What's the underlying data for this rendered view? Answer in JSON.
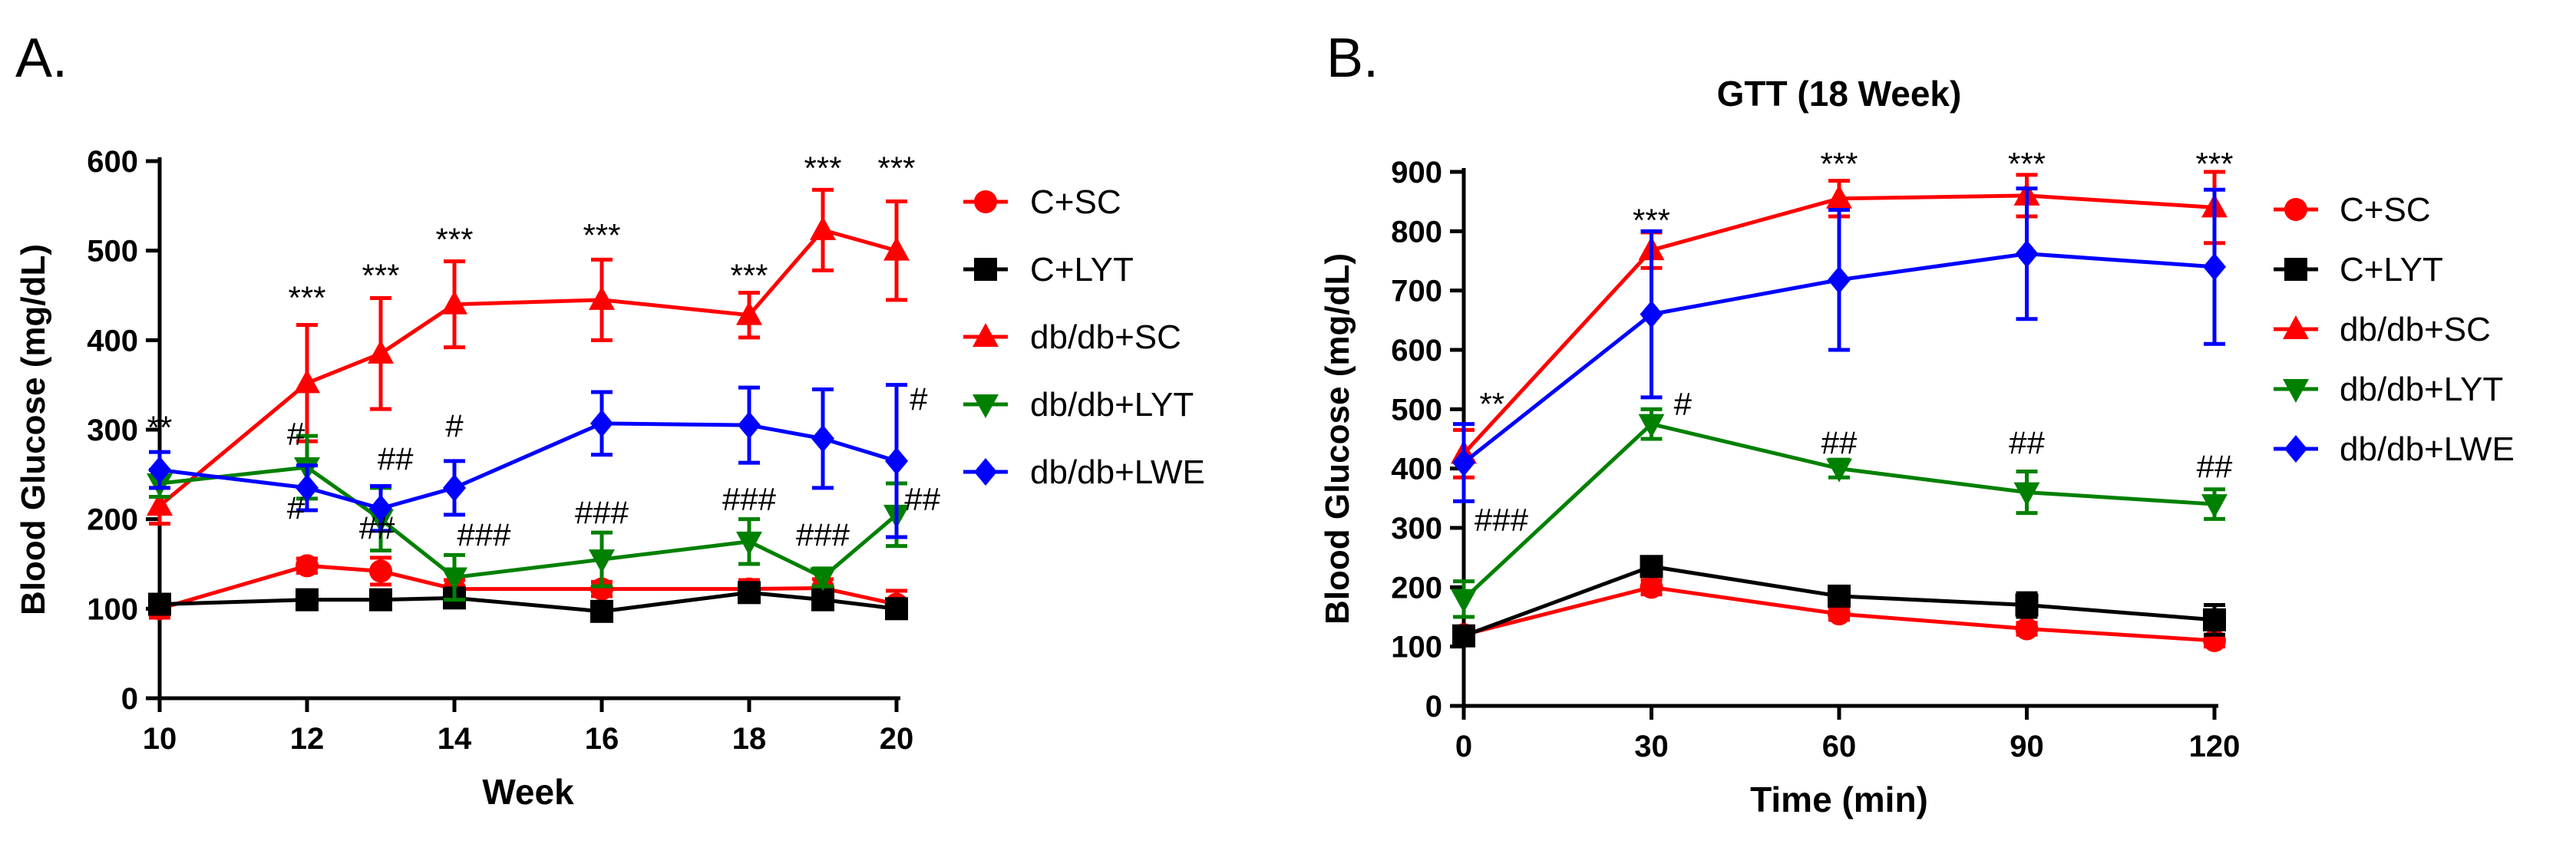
{
  "figure": {
    "panel_labels": [
      "A.",
      "B."
    ]
  },
  "chart_data": [
    {
      "type": "line",
      "panel": "A.",
      "title": "",
      "xlabel": "Week",
      "ylabel": "Blood Glucose (mg/dL)",
      "xlim": [
        10,
        20
      ],
      "ylim": [
        0,
        600
      ],
      "xticks": [
        10,
        12,
        14,
        16,
        18,
        20
      ],
      "yticks": [
        0,
        100,
        200,
        300,
        400,
        500,
        600
      ],
      "legend_position": "right",
      "series": [
        {
          "name": "C+SC",
          "color": "#ff0000",
          "marker": "circle",
          "x": [
            10,
            12,
            13,
            14,
            16,
            18,
            19,
            20
          ],
          "y": [
            100,
            148,
            142,
            122,
            122,
            122,
            123,
            105
          ],
          "err": [
            10,
            8,
            15,
            10,
            8,
            10,
            10,
            15
          ]
        },
        {
          "name": "C+LYT",
          "color": "#000000",
          "marker": "square",
          "x": [
            10,
            12,
            13,
            14,
            16,
            18,
            19,
            20
          ],
          "y": [
            105,
            110,
            110,
            112,
            97,
            118,
            110,
            100
          ],
          "err": [
            8,
            8,
            8,
            8,
            8,
            10,
            8,
            8
          ]
        },
        {
          "name": "db/db+SC",
          "color": "#ff0000",
          "marker": "triangle-up",
          "x": [
            10,
            12,
            13,
            14,
            16,
            18,
            19,
            20
          ],
          "y": [
            215,
            352,
            385,
            440,
            445,
            428,
            523,
            500
          ],
          "err": [
            20,
            65,
            62,
            48,
            45,
            25,
            45,
            55
          ]
        },
        {
          "name": "db/db+LYT",
          "color": "#008000",
          "marker": "triangle-down",
          "x": [
            10,
            12,
            13,
            14,
            16,
            18,
            19,
            20
          ],
          "y": [
            240,
            258,
            200,
            135,
            155,
            175,
            135,
            205
          ],
          "err": [
            15,
            35,
            35,
            25,
            30,
            25,
            10,
            35
          ]
        },
        {
          "name": "db/db+LWE",
          "color": "#0000ff",
          "marker": "diamond",
          "x": [
            10,
            12,
            13,
            14,
            16,
            18,
            19,
            20
          ],
          "y": [
            255,
            235,
            212,
            235,
            307,
            305,
            290,
            265
          ],
          "err": [
            20,
            25,
            25,
            30,
            35,
            42,
            55,
            85
          ]
        }
      ],
      "annotations": [
        {
          "text": "**",
          "x": 10,
          "y": 290,
          "color": "#000000"
        },
        {
          "text": "***",
          "x": 12,
          "y": 435,
          "color": "#000000"
        },
        {
          "text": "***",
          "x": 13,
          "y": 460,
          "color": "#000000"
        },
        {
          "text": "***",
          "x": 14,
          "y": 500,
          "color": "#000000"
        },
        {
          "text": "***",
          "x": 16,
          "y": 505,
          "color": "#000000"
        },
        {
          "text": "***",
          "x": 18,
          "y": 460,
          "color": "#000000"
        },
        {
          "text": "***",
          "x": 19,
          "y": 580,
          "color": "#000000"
        },
        {
          "text": "***",
          "x": 20,
          "y": 580,
          "color": "#000000"
        },
        {
          "text": "#",
          "x": 11.85,
          "y": 283,
          "color": "#000000"
        },
        {
          "text": "#",
          "x": 11.85,
          "y": 200,
          "color": "#000000"
        },
        {
          "text": "##",
          "x": 13.2,
          "y": 255,
          "color": "#000000"
        },
        {
          "text": "##",
          "x": 12.95,
          "y": 178,
          "color": "#000000"
        },
        {
          "text": "#",
          "x": 14,
          "y": 292,
          "color": "#000000"
        },
        {
          "text": "###",
          "x": 14.4,
          "y": 170,
          "color": "#000000"
        },
        {
          "text": "###",
          "x": 16,
          "y": 195,
          "color": "#000000"
        },
        {
          "text": "###",
          "x": 18,
          "y": 210,
          "color": "#000000"
        },
        {
          "text": "###",
          "x": 19,
          "y": 170,
          "color": "#000000"
        },
        {
          "text": "#",
          "x": 20.3,
          "y": 322,
          "color": "#000000"
        },
        {
          "text": "##",
          "x": 20.35,
          "y": 210,
          "color": "#000000"
        }
      ]
    },
    {
      "type": "line",
      "panel": "B.",
      "title": "GTT (18 Week)",
      "xlabel": "Time (min)",
      "ylabel": "Blood Glucose (mg/dL)",
      "xlim": [
        0,
        120
      ],
      "ylim": [
        0,
        900
      ],
      "xticks": [
        0,
        30,
        60,
        90,
        120
      ],
      "yticks": [
        0,
        100,
        200,
        300,
        400,
        500,
        600,
        700,
        800,
        900
      ],
      "legend_position": "right",
      "series": [
        {
          "name": "C+SC",
          "color": "#ff0000",
          "marker": "circle",
          "x": [
            0,
            30,
            60,
            90,
            120
          ],
          "y": [
            120,
            200,
            155,
            130,
            110
          ],
          "err": [
            10,
            12,
            10,
            10,
            10
          ]
        },
        {
          "name": "C+LYT",
          "color": "#000000",
          "marker": "square",
          "x": [
            0,
            30,
            60,
            90,
            120
          ],
          "y": [
            118,
            235,
            185,
            170,
            145
          ],
          "err": [
            12,
            15,
            15,
            20,
            25
          ]
        },
        {
          "name": "db/db+SC",
          "color": "#ff0000",
          "marker": "triangle-up",
          "x": [
            0,
            30,
            60,
            90,
            120
          ],
          "y": [
            425,
            768,
            855,
            860,
            840
          ],
          "err": [
            40,
            30,
            30,
            35,
            60
          ]
        },
        {
          "name": "db/db+LYT",
          "color": "#008000",
          "marker": "triangle-down",
          "x": [
            0,
            30,
            60,
            90,
            120
          ],
          "y": [
            180,
            475,
            400,
            360,
            340
          ],
          "err": [
            30,
            25,
            15,
            35,
            25
          ]
        },
        {
          "name": "db/db+LWE",
          "color": "#0000ff",
          "marker": "diamond",
          "x": [
            0,
            30,
            60,
            90,
            120
          ],
          "y": [
            410,
            660,
            718,
            762,
            740
          ],
          "err": [
            65,
            140,
            118,
            110,
            130
          ]
        }
      ],
      "annotations": [
        {
          "text": "**",
          "x": 4.5,
          "y": 490,
          "color": "#000000"
        },
        {
          "text": "***",
          "x": 30,
          "y": 800,
          "color": "#000000"
        },
        {
          "text": "***",
          "x": 60,
          "y": 895,
          "color": "#000000"
        },
        {
          "text": "***",
          "x": 90,
          "y": 895,
          "color": "#000000"
        },
        {
          "text": "***",
          "x": 120,
          "y": 895,
          "color": "#000000"
        },
        {
          "text": "#",
          "x": 35,
          "y": 490,
          "color": "#000000"
        },
        {
          "text": "##",
          "x": 60,
          "y": 425,
          "color": "#000000"
        },
        {
          "text": "##",
          "x": 90,
          "y": 425,
          "color": "#000000"
        },
        {
          "text": "##",
          "x": 120,
          "y": 385,
          "color": "#000000"
        },
        {
          "text": "###",
          "x": 6,
          "y": 295,
          "color": "#000000"
        }
      ]
    }
  ]
}
